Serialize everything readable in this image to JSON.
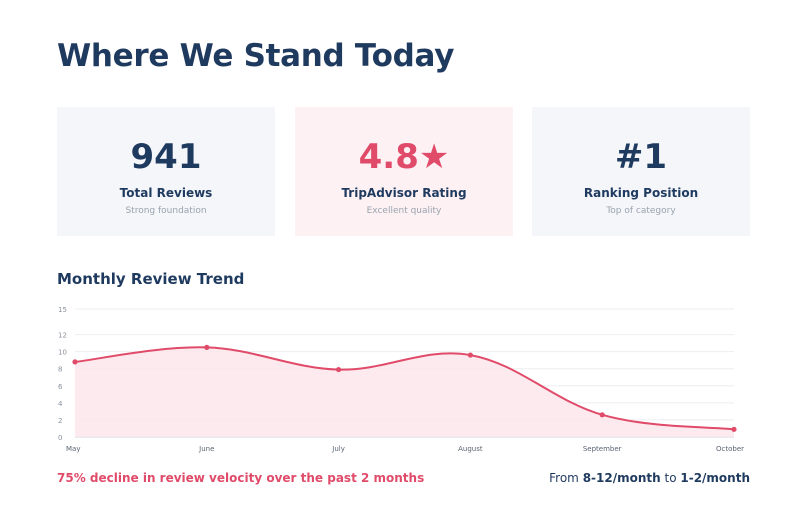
{
  "page": {
    "title": "Where We Stand Today"
  },
  "cards": [
    {
      "value": "941",
      "label": "Total Reviews",
      "sub": "Strong foundation"
    },
    {
      "value": "4.8★",
      "label": "TripAdvisor Rating",
      "sub": "Excellent quality"
    },
    {
      "value": "#1",
      "label": "Ranking Position",
      "sub": "Top of category"
    }
  ],
  "trend": {
    "title": "Monthly Review Trend"
  },
  "chart_data": {
    "type": "area",
    "categories": [
      "May",
      "June",
      "July",
      "August",
      "September",
      "October"
    ],
    "series": [
      {
        "values": [
          8.8,
          10.5,
          7.9,
          9.6,
          2.6,
          0.9
        ]
      }
    ],
    "yticks": [
      0,
      2,
      4,
      6,
      8,
      10,
      12,
      15
    ],
    "ylim": [
      0,
      15
    ],
    "grid": true,
    "line_color": "#e04b6a",
    "fill_color": "#fbe6eb"
  },
  "footer": {
    "left": "75% decline in review velocity over the past 2 months",
    "right_prefix": "From ",
    "right_from": "8-12/month",
    "right_mid": " to ",
    "right_to": "1-2/month"
  },
  "colors": {
    "navy": "#1f3a5f",
    "accent": "#e04b6a",
    "card_bg": "#f4f6fa",
    "card_pink_bg": "#fdf1f4"
  }
}
